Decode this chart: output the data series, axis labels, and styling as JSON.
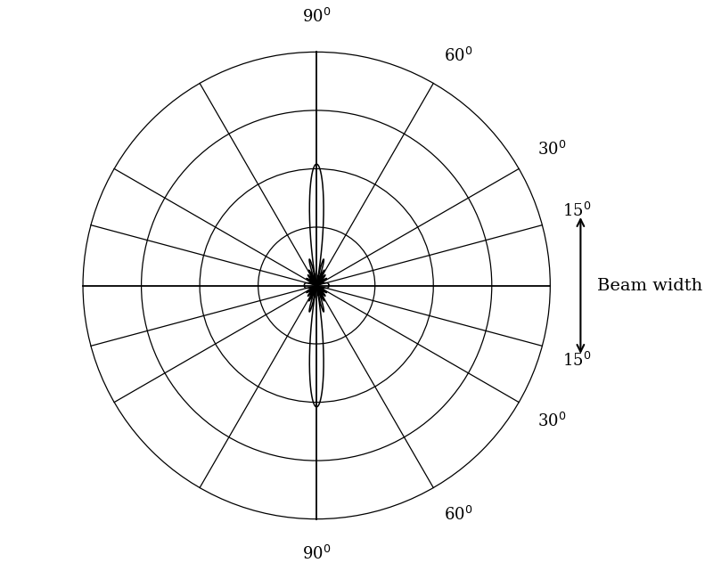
{
  "background_color": "#ffffff",
  "line_color": "#000000",
  "n_circles": 4,
  "annotation_text": "Beam width",
  "figsize": [
    8.0,
    6.41
  ],
  "dpi": 100,
  "horn_N": 10,
  "horn_d_lambda": 0.55,
  "pattern_scale": 0.52,
  "label_fontsize": 13,
  "beam_fontsize": 14
}
